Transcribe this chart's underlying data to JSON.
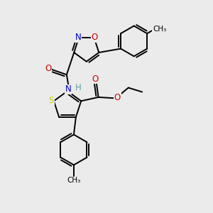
{
  "background_color": "#ebebeb",
  "atom_colors": {
    "C": "#000000",
    "N": "#0000cc",
    "O": "#cc0000",
    "S": "#cccc00",
    "H": "#5f9ea0"
  },
  "bond_color": "#000000",
  "bond_width": 1.4,
  "font_size_atom": 8.5,
  "font_size_small": 7.5
}
